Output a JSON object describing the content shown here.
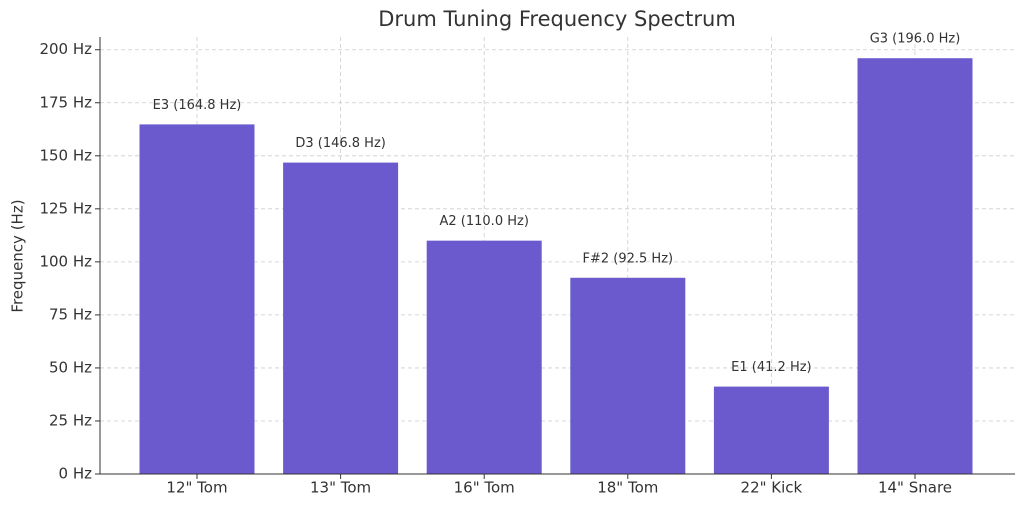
{
  "chart_data": {
    "type": "bar",
    "title": "Drum Tuning Frequency Spectrum",
    "y_label": "Frequency (Hz)",
    "categories": [
      "12\" Tom",
      "13\" Tom",
      "16\" Tom",
      "18\" Tom",
      "22\" Kick",
      "14\" Snare"
    ],
    "values": [
      164.8,
      146.8,
      110.0,
      92.5,
      41.2,
      196.0
    ],
    "value_labels": [
      "E3 (164.8 Hz)",
      "D3 (146.8 Hz)",
      "A2 (110.0 Hz)",
      "F#2 (92.5 Hz)",
      "E1 (41.2 Hz)",
      "G3 (196.0 Hz)"
    ],
    "color": "#6a5acd",
    "ylim": [
      0,
      206
    ],
    "yticks": [
      {
        "value": 0,
        "label": "0 Hz"
      },
      {
        "value": 25,
        "label": "25 Hz"
      },
      {
        "value": 50,
        "label": "50 Hz"
      },
      {
        "value": 75,
        "label": "75 Hz"
      },
      {
        "value": 100,
        "label": "100 Hz"
      },
      {
        "value": 125,
        "label": "125 Hz"
      },
      {
        "value": 150,
        "label": "150 Hz"
      },
      {
        "value": 175,
        "label": "175 Hz"
      },
      {
        "value": 200,
        "label": "200 Hz"
      }
    ],
    "grid": true
  }
}
